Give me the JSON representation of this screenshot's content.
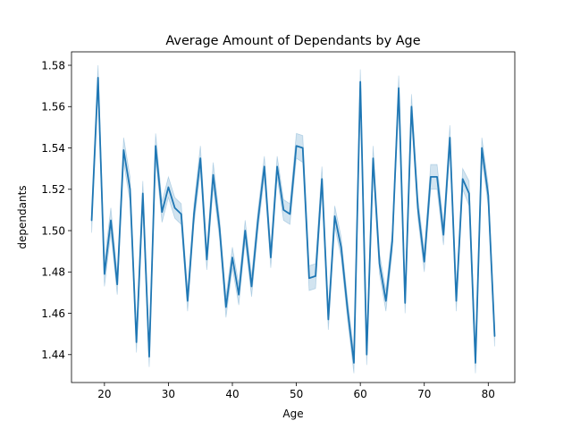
{
  "chart_data": {
    "type": "line",
    "title": "Average Amount of Dependants by Age",
    "xlabel": "Age",
    "ylabel": "dependants",
    "xlim": [
      14.85,
      84.15
    ],
    "ylim": [
      1.4265,
      1.5865
    ],
    "xticks": [
      20,
      30,
      40,
      50,
      60,
      70,
      80
    ],
    "yticks": [
      1.44,
      1.46,
      1.48,
      1.5,
      1.52,
      1.54,
      1.56,
      1.58
    ],
    "ytick_labels": [
      "1.44",
      "1.46",
      "1.48",
      "1.50",
      "1.52",
      "1.54",
      "1.56",
      "1.58"
    ],
    "grid": false,
    "legend": "none",
    "series": [
      {
        "color": "#1f77b4",
        "x": [
          18,
          19,
          20,
          21,
          22,
          23,
          24,
          25,
          26,
          27,
          28,
          29,
          30,
          31,
          32,
          33,
          34,
          35,
          36,
          37,
          38,
          39,
          40,
          41,
          42,
          43,
          44,
          45,
          46,
          47,
          48,
          49,
          50,
          51,
          52,
          53,
          54,
          55,
          56,
          57,
          58,
          59,
          60,
          61,
          62,
          63,
          64,
          65,
          66,
          67,
          68,
          69,
          70,
          71,
          72,
          73,
          74,
          75,
          76,
          77,
          78,
          79,
          80,
          81
        ],
        "values": [
          1.505,
          1.574,
          1.479,
          1.505,
          1.474,
          1.539,
          1.52,
          1.446,
          1.518,
          1.439,
          1.541,
          1.509,
          1.521,
          1.511,
          1.508,
          1.466,
          1.508,
          1.535,
          1.486,
          1.527,
          1.501,
          1.463,
          1.487,
          1.469,
          1.5,
          1.473,
          1.505,
          1.531,
          1.487,
          1.531,
          1.51,
          1.508,
          1.541,
          1.54,
          1.477,
          1.478,
          1.525,
          1.457,
          1.507,
          1.492,
          1.462,
          1.436,
          1.572,
          1.44,
          1.535,
          1.484,
          1.466,
          1.495,
          1.569,
          1.465,
          1.56,
          1.511,
          1.485,
          1.526,
          1.526,
          1.498,
          1.545,
          1.466,
          1.525,
          1.518,
          1.436,
          1.54,
          1.517,
          1.449
        ],
        "ci_lower": [
          1.499,
          1.568,
          1.473,
          1.499,
          1.469,
          1.533,
          1.514,
          1.441,
          1.512,
          1.434,
          1.535,
          1.504,
          1.516,
          1.506,
          1.503,
          1.461,
          1.503,
          1.529,
          1.481,
          1.521,
          1.496,
          1.458,
          1.482,
          1.464,
          1.495,
          1.468,
          1.5,
          1.526,
          1.482,
          1.526,
          1.505,
          1.503,
          1.535,
          1.533,
          1.471,
          1.472,
          1.519,
          1.452,
          1.502,
          1.487,
          1.457,
          1.431,
          1.566,
          1.435,
          1.529,
          1.479,
          1.461,
          1.49,
          1.563,
          1.46,
          1.554,
          1.506,
          1.48,
          1.52,
          1.52,
          1.493,
          1.539,
          1.461,
          1.52,
          1.512,
          1.431,
          1.535,
          1.512,
          1.444
        ],
        "ci_upper": [
          1.511,
          1.58,
          1.485,
          1.511,
          1.479,
          1.545,
          1.526,
          1.451,
          1.524,
          1.444,
          1.547,
          1.514,
          1.526,
          1.516,
          1.513,
          1.471,
          1.513,
          1.541,
          1.491,
          1.533,
          1.506,
          1.468,
          1.492,
          1.474,
          1.505,
          1.478,
          1.51,
          1.536,
          1.492,
          1.536,
          1.515,
          1.513,
          1.547,
          1.546,
          1.483,
          1.484,
          1.531,
          1.462,
          1.512,
          1.497,
          1.467,
          1.441,
          1.578,
          1.445,
          1.541,
          1.489,
          1.471,
          1.5,
          1.575,
          1.47,
          1.566,
          1.516,
          1.49,
          1.532,
          1.532,
          1.503,
          1.551,
          1.471,
          1.53,
          1.524,
          1.441,
          1.545,
          1.522,
          1.454
        ]
      }
    ]
  }
}
